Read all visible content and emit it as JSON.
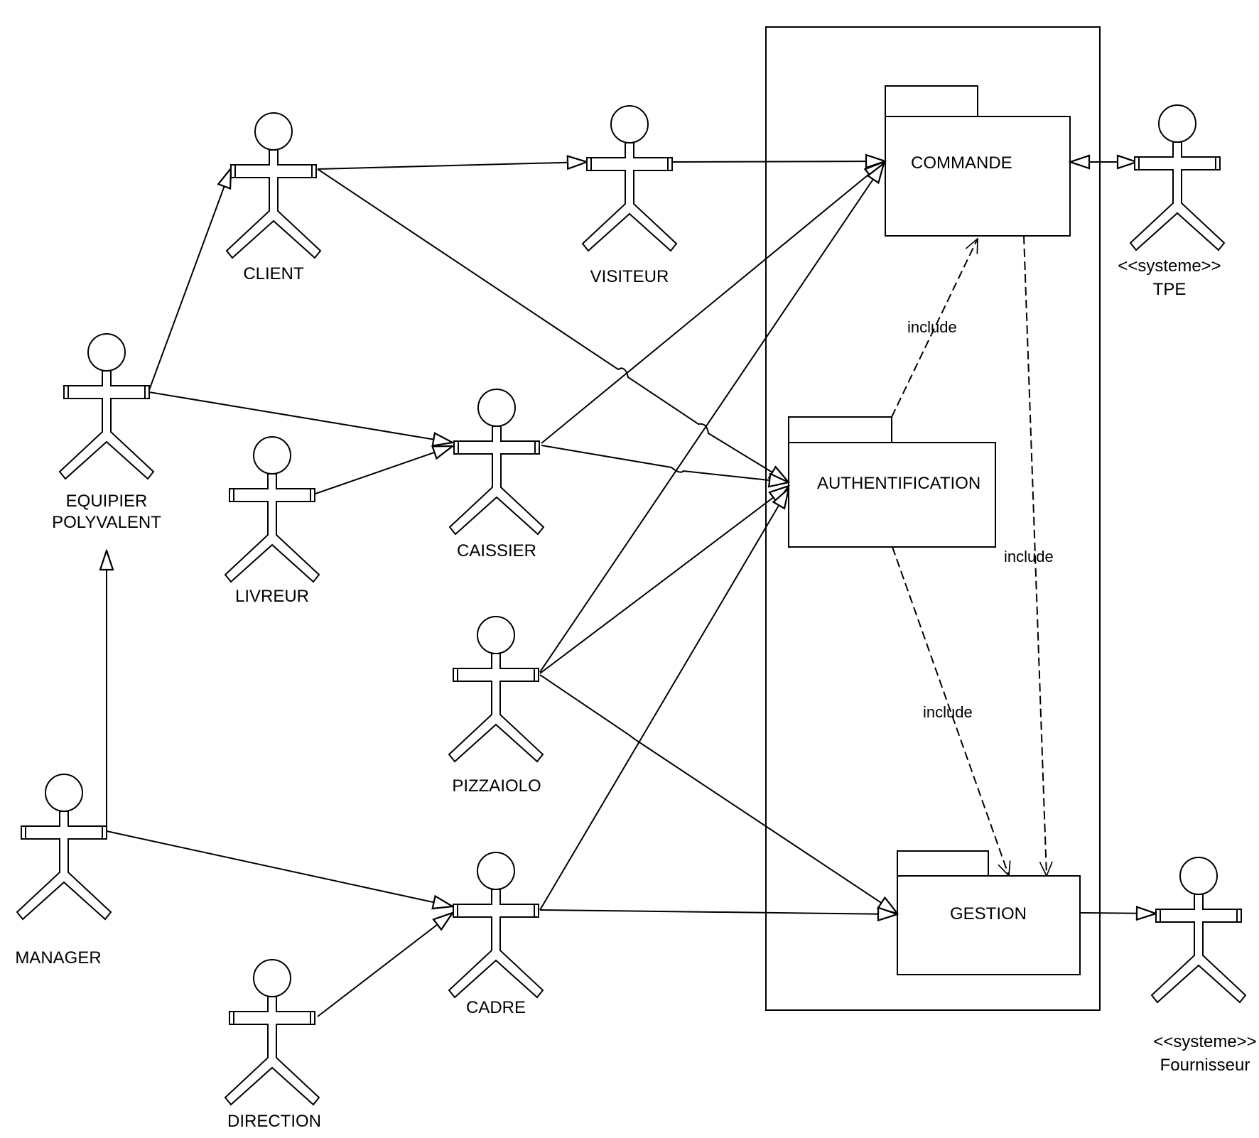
{
  "system_boundary": {
    "name": "system-boundary"
  },
  "packages": {
    "commande": {
      "label": "COMMANDE"
    },
    "authentification": {
      "label": "AUTHENTIFICATION"
    },
    "gestion": {
      "label": "GESTION"
    }
  },
  "actors": {
    "client": {
      "label": "CLIENT"
    },
    "visiteur": {
      "label": "VISITEUR"
    },
    "equipier": {
      "line1": "EQUIPIER",
      "line2": "POLYVALENT"
    },
    "livreur": {
      "label": "LIVREUR"
    },
    "caissier": {
      "label": "CAISSIER"
    },
    "pizzaiolo": {
      "label": "PIZZAIOLO"
    },
    "manager": {
      "label": "MANAGER"
    },
    "cadre": {
      "label": "CADRE"
    },
    "direction": {
      "label": "DIRECTION"
    },
    "tpe": {
      "stereotype": "<<systeme>>",
      "label": "TPE"
    },
    "fournisseur": {
      "stereotype": "<<systeme>>",
      "label": "Fournisseur"
    }
  },
  "relations": {
    "include_1": "include",
    "include_2": "include",
    "include_3": "include"
  }
}
